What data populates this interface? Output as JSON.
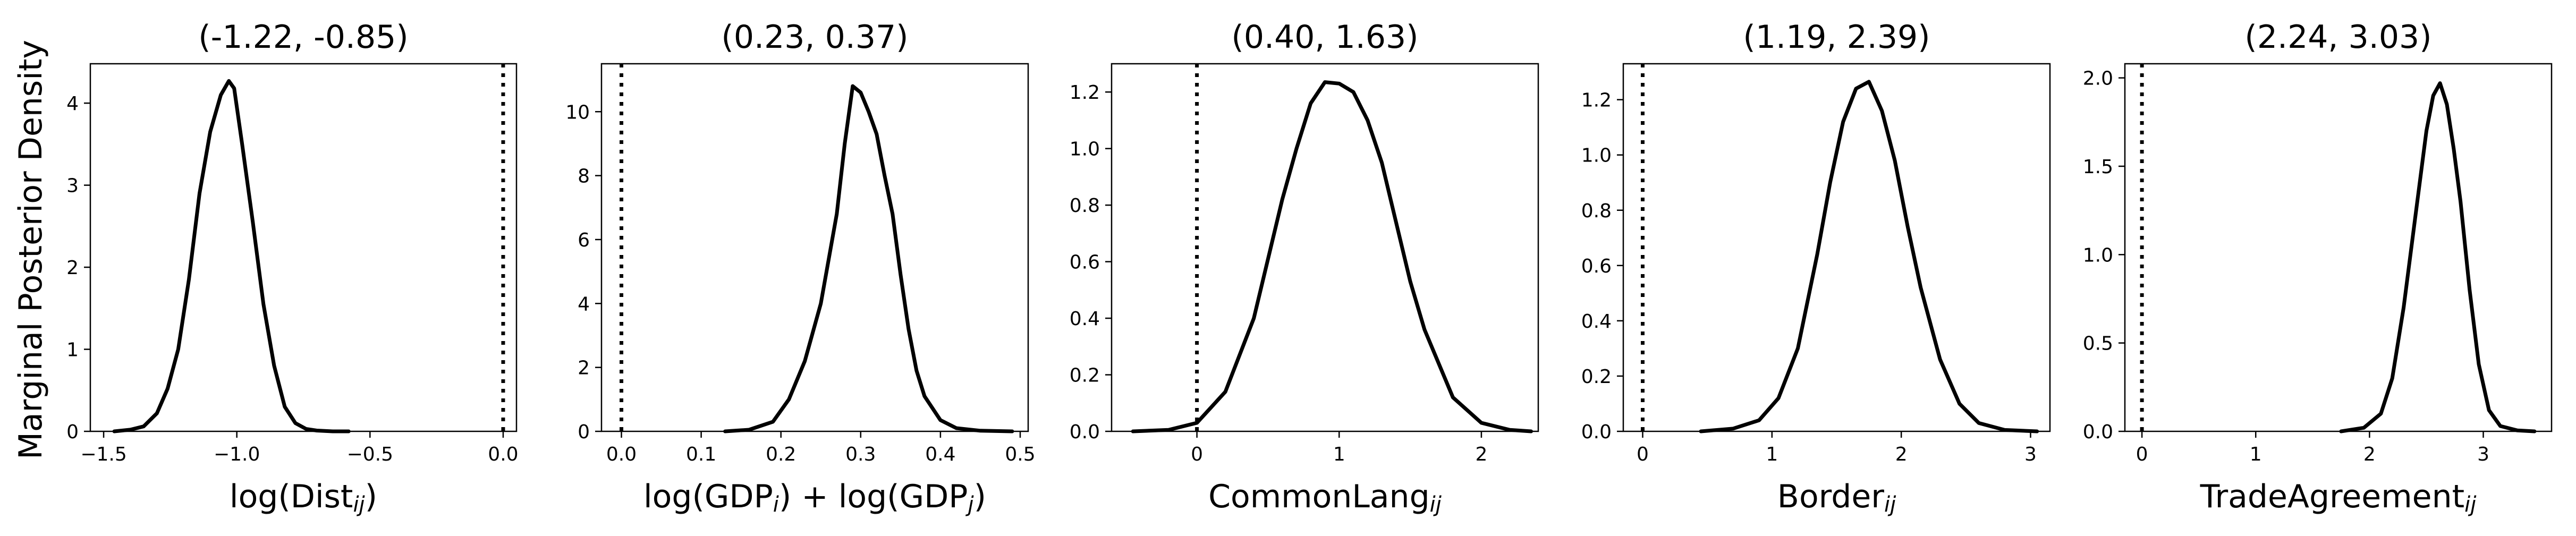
{
  "figure": {
    "ylabel": "Marginal Posterior Density"
  },
  "chart_data": [
    {
      "type": "line",
      "title": "(-1.22, -0.85)",
      "xlabel": "log(Dist_ij)",
      "xlabel_parts": [
        {
          "t": "log(Dist",
          "s": 0
        },
        {
          "t": "ij",
          "s": 1
        },
        {
          "t": ")",
          "s": 0
        }
      ],
      "ylabel": "Marginal Posterior Density",
      "xlim": [
        -1.55,
        0.05
      ],
      "ylim": [
        0,
        4.48
      ],
      "xticks": [
        -1.5,
        -1.0,
        -0.5,
        0.0
      ],
      "xtick_labels": [
        "−1.5",
        "−1.0",
        "−0.5",
        "0.0"
      ],
      "yticks": [
        0,
        1,
        2,
        3,
        4
      ],
      "ytick_labels": [
        "0",
        "1",
        "2",
        "3",
        "4"
      ],
      "reference_line_x": 0,
      "series": [
        {
          "x": [
            -1.46,
            -1.4,
            -1.35,
            -1.3,
            -1.26,
            -1.22,
            -1.18,
            -1.14,
            -1.1,
            -1.06,
            -1.03,
            -1.01,
            -0.98,
            -0.94,
            -0.9,
            -0.86,
            -0.82,
            -0.78,
            -0.74,
            -0.7,
            -0.64,
            -0.58
          ],
          "y": [
            0.0,
            0.02,
            0.06,
            0.22,
            0.52,
            1.0,
            1.85,
            2.9,
            3.65,
            4.1,
            4.27,
            4.18,
            3.5,
            2.55,
            1.55,
            0.8,
            0.3,
            0.1,
            0.03,
            0.01,
            0.0,
            0.0
          ]
        }
      ]
    },
    {
      "type": "line",
      "title": "(0.23, 0.37)",
      "xlabel": "log(GDP_i) + log(GDP_j)",
      "xlabel_parts": [
        {
          "t": "log(GDP",
          "s": 0
        },
        {
          "t": "i",
          "s": 1
        },
        {
          "t": ") + log(GDP",
          "s": 0
        },
        {
          "t": "j",
          "s": 1
        },
        {
          "t": ")",
          "s": 0
        }
      ],
      "ylabel": "",
      "xlim": [
        -0.025,
        0.51
      ],
      "ylim": [
        0,
        11.5
      ],
      "xticks": [
        0.0,
        0.1,
        0.2,
        0.3,
        0.4,
        0.5
      ],
      "xtick_labels": [
        "0.0",
        "0.1",
        "0.2",
        "0.3",
        "0.4",
        "0.5"
      ],
      "yticks": [
        0,
        2,
        4,
        6,
        8,
        10
      ],
      "ytick_labels": [
        "0",
        "2",
        "4",
        "6",
        "8",
        "10"
      ],
      "reference_line_x": 0,
      "series": [
        {
          "x": [
            0.13,
            0.16,
            0.19,
            0.21,
            0.23,
            0.25,
            0.27,
            0.28,
            0.29,
            0.3,
            0.31,
            0.32,
            0.33,
            0.34,
            0.35,
            0.36,
            0.37,
            0.38,
            0.4,
            0.42,
            0.45,
            0.49
          ],
          "y": [
            0.0,
            0.05,
            0.3,
            1.0,
            2.2,
            4.0,
            6.8,
            9.0,
            10.8,
            10.6,
            10.0,
            9.3,
            8.0,
            6.8,
            4.9,
            3.2,
            1.9,
            1.1,
            0.35,
            0.1,
            0.02,
            0.0
          ]
        }
      ]
    },
    {
      "type": "line",
      "title": "(0.40, 1.63)",
      "xlabel": "CommonLang_ij",
      "xlabel_parts": [
        {
          "t": "CommonLang",
          "s": 0
        },
        {
          "t": "ij",
          "s": 1
        }
      ],
      "ylabel": "",
      "xlim": [
        -0.6,
        2.4
      ],
      "ylim": [
        0,
        1.3
      ],
      "xticks": [
        0,
        1,
        2
      ],
      "xtick_labels": [
        "0",
        "1",
        "2"
      ],
      "yticks": [
        0.0,
        0.2,
        0.4,
        0.6,
        0.8,
        1.0,
        1.2
      ],
      "ytick_labels": [
        "0.0",
        "0.2",
        "0.4",
        "0.6",
        "0.8",
        "1.0",
        "1.2"
      ],
      "reference_line_x": 0,
      "series": [
        {
          "x": [
            -0.45,
            -0.2,
            0.0,
            0.2,
            0.4,
            0.6,
            0.7,
            0.8,
            0.9,
            1.0,
            1.1,
            1.2,
            1.3,
            1.4,
            1.5,
            1.6,
            1.8,
            2.0,
            2.2,
            2.35
          ],
          "y": [
            0.0,
            0.005,
            0.03,
            0.14,
            0.4,
            0.82,
            1.0,
            1.16,
            1.235,
            1.23,
            1.2,
            1.1,
            0.95,
            0.74,
            0.53,
            0.36,
            0.12,
            0.03,
            0.005,
            0.0
          ]
        }
      ]
    },
    {
      "type": "line",
      "title": "(1.19, 2.39)",
      "xlabel": "Border_ij",
      "xlabel_parts": [
        {
          "t": "Border",
          "s": 0
        },
        {
          "t": "ij",
          "s": 1
        }
      ],
      "ylabel": "",
      "xlim": [
        -0.15,
        3.15
      ],
      "ylim": [
        0,
        1.33
      ],
      "xticks": [
        0,
        1,
        2,
        3
      ],
      "xtick_labels": [
        "0",
        "1",
        "2",
        "3"
      ],
      "yticks": [
        0.0,
        0.2,
        0.4,
        0.6,
        0.8,
        1.0,
        1.2
      ],
      "ytick_labels": [
        "0.0",
        "0.2",
        "0.4",
        "0.6",
        "0.8",
        "1.0",
        "1.2"
      ],
      "reference_line_x": 0,
      "series": [
        {
          "x": [
            0.45,
            0.7,
            0.9,
            1.05,
            1.2,
            1.35,
            1.45,
            1.55,
            1.65,
            1.75,
            1.85,
            1.95,
            2.05,
            2.15,
            2.3,
            2.45,
            2.6,
            2.8,
            3.05
          ],
          "y": [
            0.0,
            0.01,
            0.04,
            0.12,
            0.3,
            0.64,
            0.9,
            1.12,
            1.24,
            1.265,
            1.16,
            0.98,
            0.74,
            0.52,
            0.26,
            0.1,
            0.03,
            0.005,
            0.0
          ]
        }
      ]
    },
    {
      "type": "line",
      "title": "(2.24, 3.03)",
      "xlabel": "TradeAgreement_ij",
      "xlabel_parts": [
        {
          "t": "TradeAgreement",
          "s": 0
        },
        {
          "t": "ij",
          "s": 1
        }
      ],
      "ylabel": "",
      "xlim": [
        -0.15,
        3.6
      ],
      "ylim": [
        0,
        2.08
      ],
      "xticks": [
        0,
        1,
        2,
        3
      ],
      "xtick_labels": [
        "0",
        "1",
        "2",
        "3"
      ],
      "yticks": [
        0.0,
        0.5,
        1.0,
        1.5,
        2.0
      ],
      "ytick_labels": [
        "0.0",
        "0.5",
        "1.0",
        "1.5",
        "2.0"
      ],
      "reference_line_x": 0,
      "series": [
        {
          "x": [
            1.75,
            1.95,
            2.1,
            2.2,
            2.3,
            2.4,
            2.5,
            2.56,
            2.62,
            2.68,
            2.74,
            2.8,
            2.88,
            2.96,
            3.05,
            3.15,
            3.3,
            3.45
          ],
          "y": [
            0.0,
            0.02,
            0.1,
            0.3,
            0.7,
            1.2,
            1.7,
            1.9,
            1.97,
            1.85,
            1.6,
            1.3,
            0.8,
            0.38,
            0.12,
            0.03,
            0.005,
            0.0
          ]
        }
      ]
    }
  ]
}
